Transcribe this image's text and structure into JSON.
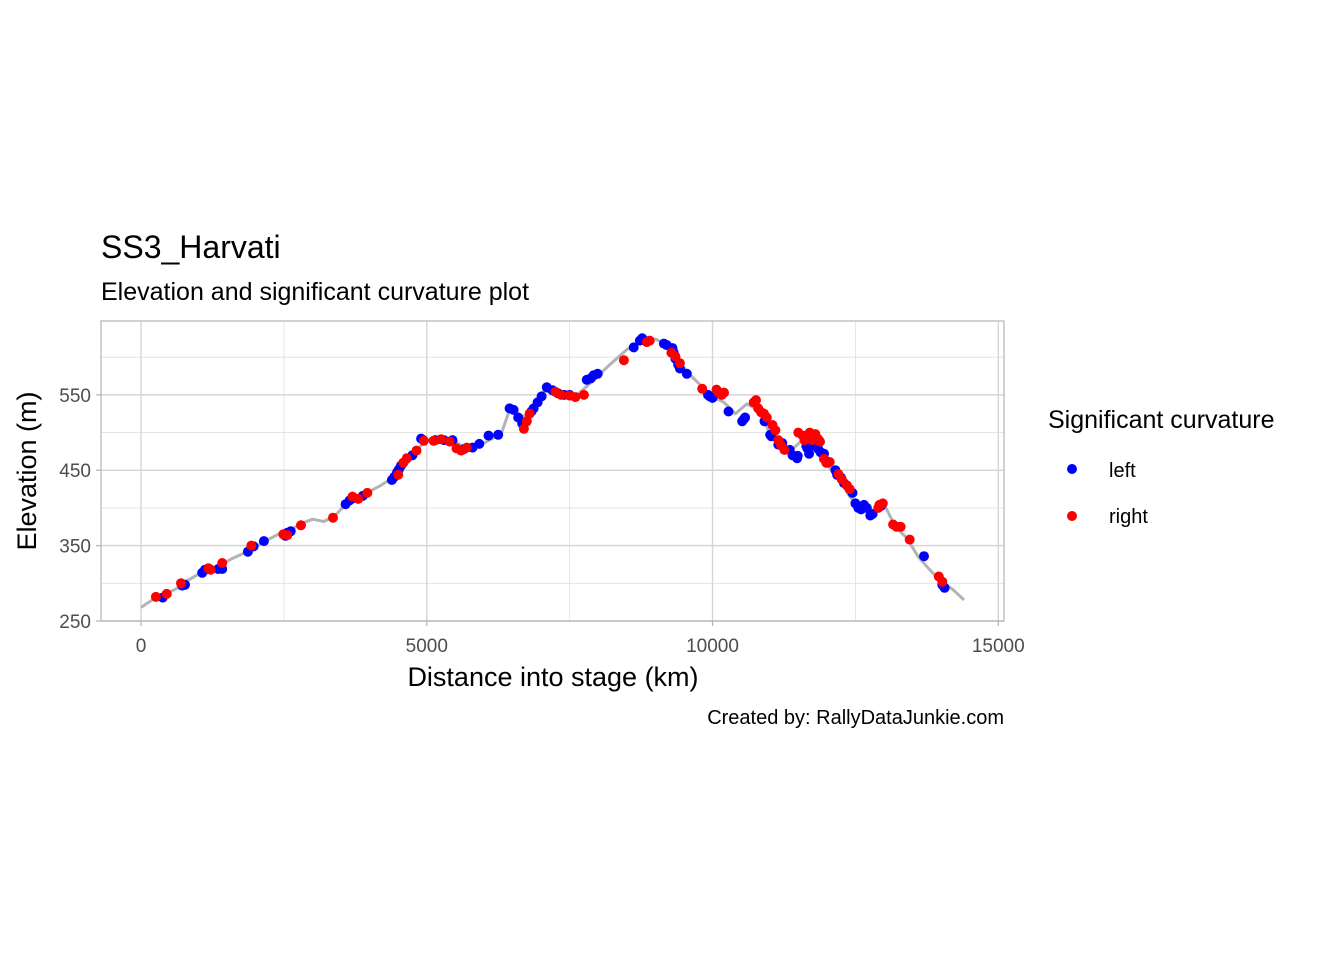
{
  "chart_data": {
    "type": "line",
    "title": "SS3_Harvati",
    "subtitle": "Elevation and significant curvature plot",
    "xlabel": "Distance into stage (km)",
    "ylabel": "Elevation (m)",
    "caption": "Created by: RallyDataJunkie.com",
    "xlim": [
      -700,
      15100
    ],
    "ylim": [
      250,
      648
    ],
    "xticks": [
      0,
      5000,
      10000,
      15000
    ],
    "xtick_labels": [
      "0",
      "5000",
      "10000",
      "15000"
    ],
    "yticks": [
      250,
      350,
      450,
      550
    ],
    "ytick_labels": [
      "250",
      "350",
      "450",
      "550"
    ],
    "grid": true,
    "legend": {
      "title": "Significant curvature",
      "position": "right",
      "entries": [
        {
          "name": "left",
          "color": "#0000ff"
        },
        {
          "name": "right",
          "color": "#ff0000"
        }
      ]
    },
    "colors": {
      "line": "#b3b3b3",
      "left": "#0000ff",
      "right": "#ff0000",
      "grid": "#e0e0e0",
      "panel_border": "#b3b3b3"
    },
    "series": [
      {
        "name": "elevation",
        "x": [
          0,
          200,
          400,
          600,
          800,
          1000,
          1200,
          1400,
          1600,
          1800,
          2000,
          2200,
          2400,
          2600,
          2800,
          3000,
          3200,
          3400,
          3600,
          3800,
          4000,
          4200,
          4400,
          4600,
          4800,
          4950,
          5200,
          5500,
          5700,
          5900,
          6100,
          6300,
          6450,
          6600,
          6750,
          6900,
          7050,
          7300,
          7600,
          7900,
          8200,
          8500,
          8800,
          9000,
          9200,
          9400,
          9600,
          9800,
          10000,
          10200,
          10400,
          10600,
          10800,
          11000,
          11200,
          11400,
          11600,
          11800,
          12000,
          12200,
          12400,
          12600,
          12800,
          13000,
          13200,
          13400,
          13600,
          13800,
          14000,
          14200,
          14400
        ],
        "y": [
          268,
          278,
          285,
          292,
          303,
          312,
          318,
          325,
          333,
          340,
          348,
          357,
          365,
          370,
          379,
          385,
          382,
          390,
          407,
          415,
          422,
          430,
          440,
          455,
          470,
          490,
          490,
          488,
          478,
          482,
          490,
          498,
          530,
          522,
          522,
          540,
          555,
          552,
          548,
          568,
          590,
          610,
          623,
          624,
          617,
          595,
          577,
          562,
          548,
          540,
          525,
          538,
          530,
          500,
          483,
          478,
          492,
          480,
          458,
          440,
          415,
          400,
          390,
          405,
          375,
          360,
          335,
          318,
          302,
          292,
          278
        ]
      },
      {
        "name": "left",
        "x": [
          380,
          720,
          770,
          1070,
          1120,
          1350,
          1420,
          1870,
          1970,
          2150,
          2530,
          2560,
          2620,
          3580,
          3650,
          3720,
          3880,
          4390,
          4430,
          4480,
          4510,
          4550,
          4750,
          4900,
          4940,
          5150,
          5300,
          5450,
          5650,
          5800,
          5920,
          6080,
          6250,
          6450,
          6520,
          6600,
          6670,
          6830,
          6870,
          6940,
          7010,
          7100,
          7200,
          7300,
          7400,
          7500,
          7800,
          7870,
          7920,
          7990,
          8620,
          8730,
          8770,
          9150,
          9200,
          9300,
          9320,
          9350,
          9400,
          9430,
          9550,
          9920,
          9950,
          10000,
          10280,
          10520,
          10550,
          10570,
          10910,
          11010,
          11030,
          11150,
          11180,
          11220,
          11350,
          11400,
          11480,
          11490,
          11640,
          11660,
          11690,
          11750,
          11800,
          11850,
          11890,
          11950,
          12000,
          12150,
          12180,
          12250,
          12300,
          12450,
          12500,
          12550,
          12600,
          12650,
          12700,
          12760,
          12800,
          12950,
          13700,
          14020,
          14060
        ],
        "y": [
          281,
          297,
          298,
          314,
          318,
          319,
          319,
          342,
          349,
          356,
          363,
          367,
          369,
          405,
          410,
          413,
          416,
          437,
          441,
          447,
          451,
          456,
          470,
          492,
          490,
          490,
          490,
          490,
          478,
          480,
          485,
          496,
          497,
          532,
          530,
          520,
          512,
          528,
          532,
          540,
          548,
          560,
          556,
          552,
          550,
          550,
          570,
          572,
          576,
          578,
          613,
          622,
          625,
          618,
          616,
          612,
          606,
          598,
          590,
          585,
          578,
          550,
          548,
          546,
          528,
          515,
          518,
          520,
          515,
          497,
          495,
          484,
          484,
          486,
          477,
          470,
          466,
          469,
          482,
          479,
          472,
          488,
          482,
          478,
          474,
          472,
          462,
          450,
          444,
          440,
          433,
          420,
          406,
          400,
          398,
          404,
          400,
          390,
          392,
          403,
          336,
          298,
          294
        ]
      },
      {
        "name": "right",
        "x": [
          260,
          450,
          700,
          1180,
          1220,
          1420,
          1930,
          2490,
          2560,
          2800,
          3360,
          3700,
          3800,
          3960,
          4500,
          4590,
          4650,
          4820,
          4950,
          5120,
          5250,
          5400,
          5520,
          5600,
          5700,
          6700,
          6750,
          6800,
          7250,
          7350,
          7500,
          7600,
          7750,
          8450,
          8850,
          8900,
          9280,
          9350,
          9430,
          9820,
          10070,
          10100,
          10160,
          10200,
          10720,
          10760,
          10800,
          10850,
          10900,
          10950,
          11050,
          11100,
          11150,
          11200,
          11260,
          11500,
          11580,
          11610,
          11660,
          11700,
          11750,
          11800,
          11850,
          11880,
          11950,
          11990,
          12020,
          12050,
          12200,
          12260,
          12350,
          12400,
          12900,
          12920,
          12980,
          13160,
          13220,
          13290,
          13450,
          13960,
          14020
        ],
        "y": [
          282,
          286,
          300,
          320,
          318,
          327,
          350,
          365,
          364,
          377,
          387,
          415,
          412,
          420,
          444,
          460,
          466,
          476,
          489,
          489,
          491,
          488,
          479,
          476,
          480,
          505,
          515,
          525,
          554,
          550,
          549,
          547,
          550,
          596,
          620,
          622,
          606,
          601,
          592,
          558,
          557,
          554,
          550,
          553,
          540,
          543,
          532,
          527,
          525,
          520,
          510,
          503,
          490,
          483,
          477,
          500,
          496,
          490,
          496,
          500,
          490,
          498,
          491,
          488,
          465,
          460,
          460,
          461,
          445,
          438,
          430,
          425,
          400,
          404,
          406,
          378,
          375,
          375,
          358,
          309,
          302
        ]
      }
    ]
  }
}
